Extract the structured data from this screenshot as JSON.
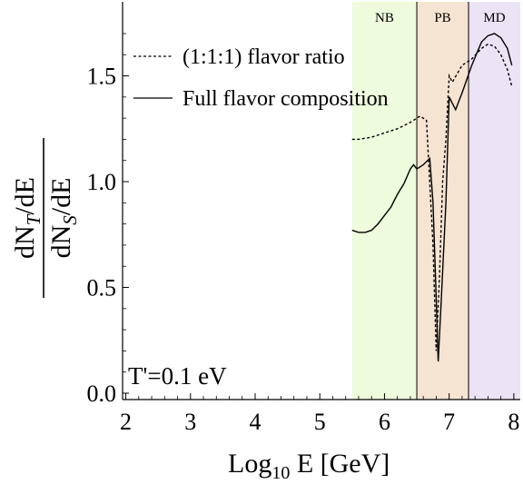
{
  "chart_data": {
    "type": "line",
    "xlabel": "Log10 E [GeV]",
    "ylabel": "dNT/dE / dNS/dE",
    "xlim": [
      1.95,
      8.1
    ],
    "ylim": [
      -0.03,
      1.85
    ],
    "x_ticks": [
      2,
      3,
      4,
      5,
      6,
      7,
      8
    ],
    "y_ticks": [
      0.0,
      0.5,
      1.0,
      1.5
    ],
    "y_tick_labels": [
      "0.0",
      "0.5",
      "1.0",
      "1.5"
    ],
    "annotation": "T'=0.1 eV",
    "regions": [
      {
        "label": "NB",
        "x_range": [
          5.5,
          6.5
        ],
        "color": "#eefbdc"
      },
      {
        "label": "PB",
        "x_range": [
          6.5,
          7.3
        ],
        "color": "#f6e4d2"
      },
      {
        "label": "MD",
        "x_range": [
          7.3,
          8.1
        ],
        "color": "#ebe4f5"
      }
    ],
    "series": [
      {
        "name": "(1:1:1) flavor ratio",
        "style": "dashed",
        "x": [
          5.5,
          5.6,
          5.8,
          6.0,
          6.2,
          6.4,
          6.55,
          6.65,
          6.75,
          6.8,
          6.85,
          6.9,
          6.95,
          7.0,
          7.05,
          7.2,
          7.35,
          7.5,
          7.6,
          7.7,
          7.8,
          7.9,
          7.97
        ],
        "y": [
          1.2,
          1.2,
          1.21,
          1.23,
          1.25,
          1.28,
          1.31,
          1.29,
          0.7,
          0.2,
          0.55,
          1.0,
          1.2,
          1.5,
          1.47,
          1.55,
          1.58,
          1.63,
          1.65,
          1.64,
          1.6,
          1.53,
          1.45
        ]
      },
      {
        "name": "Full flavor composition",
        "style": "solid",
        "x": [
          5.5,
          5.6,
          5.7,
          5.8,
          5.9,
          6.0,
          6.1,
          6.2,
          6.3,
          6.4,
          6.45,
          6.5,
          6.6,
          6.7,
          6.75,
          6.8,
          6.83,
          6.88,
          6.95,
          7.0,
          7.05,
          7.1,
          7.2,
          7.35,
          7.5,
          7.6,
          7.7,
          7.8,
          7.9,
          7.97
        ],
        "y": [
          0.77,
          0.76,
          0.76,
          0.77,
          0.8,
          0.84,
          0.88,
          0.94,
          0.99,
          1.06,
          1.08,
          1.06,
          1.08,
          1.11,
          0.9,
          0.45,
          0.15,
          0.45,
          0.9,
          1.4,
          1.37,
          1.34,
          1.42,
          1.55,
          1.66,
          1.69,
          1.7,
          1.68,
          1.63,
          1.55
        ]
      }
    ],
    "grid": false,
    "legend_position": "top"
  }
}
